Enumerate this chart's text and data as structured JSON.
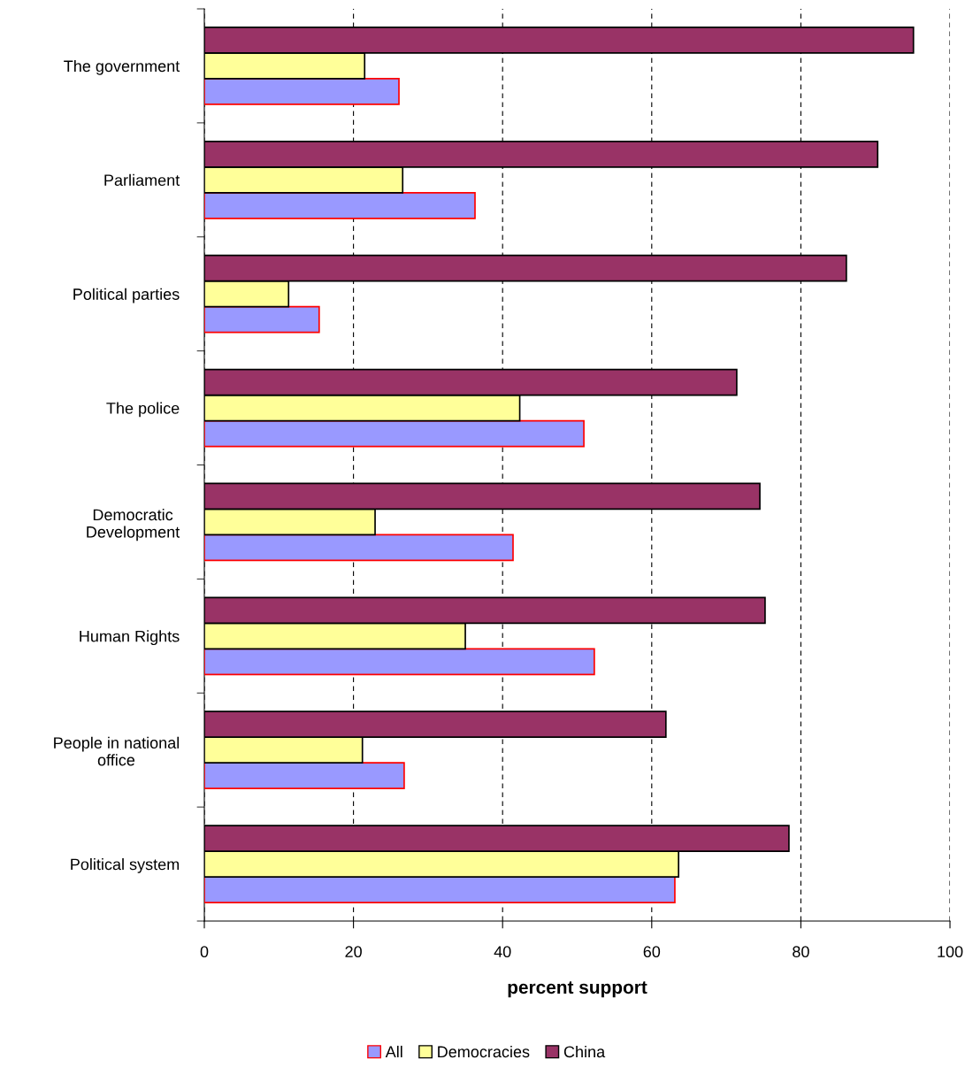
{
  "chart_data": {
    "type": "bar",
    "orientation": "horizontal",
    "xlabel": "percent support",
    "categories": [
      "The government",
      "Parliament",
      "Political parties",
      "The police",
      "Democratic\nDevelopment",
      "Human Rights",
      "People in national\noffice",
      "Political system"
    ],
    "series": [
      {
        "name": "All",
        "color": "#9999ff",
        "values": [
          26.1,
          36.3,
          15.4,
          50.9,
          41.4,
          52.3,
          26.8,
          63.1
        ]
      },
      {
        "name": "Democracies",
        "color": "#ffff99",
        "values": [
          21.5,
          26.6,
          11.3,
          42.3,
          22.9,
          35.0,
          21.2,
          63.6
        ]
      },
      {
        "name": "China",
        "color": "#993366",
        "values": [
          95.1,
          90.3,
          86.1,
          71.4,
          74.5,
          75.2,
          61.9,
          78.4
        ]
      }
    ],
    "xlim": [
      0,
      100
    ],
    "xticks": [
      0,
      20,
      40,
      60,
      80,
      100
    ],
    "grid": "x",
    "legend": "bottom"
  }
}
